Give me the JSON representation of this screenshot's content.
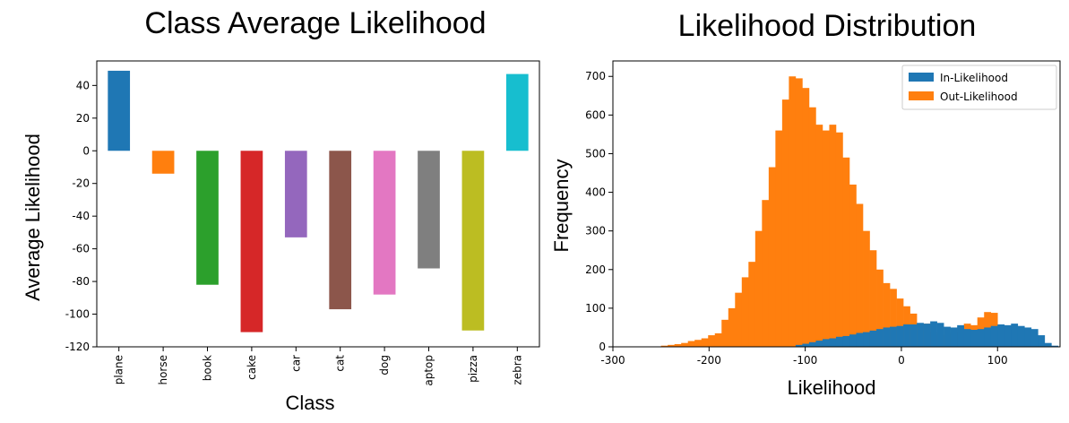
{
  "chart_data": [
    {
      "type": "bar",
      "title": "Class Average Likelihood",
      "xlabel": "Class",
      "ylabel": "Average Likelihood",
      "categories": [
        "plane",
        "horse",
        "book",
        "cake",
        "car",
        "cat",
        "dog",
        "aptop",
        "pizza",
        "zebra"
      ],
      "values": [
        49,
        -14,
        -82,
        -111,
        -53,
        -97,
        -88,
        -72,
        -110,
        47
      ],
      "colors": [
        "#1f77b4",
        "#ff7f0e",
        "#2ca02c",
        "#d62728",
        "#9467bd",
        "#8c564b",
        "#e377c2",
        "#7f7f7f",
        "#bcbd22",
        "#17becf"
      ],
      "ylim": [
        -120,
        55
      ],
      "yticks": [
        40,
        20,
        0,
        -20,
        -40,
        -60,
        -80,
        -100,
        -120
      ],
      "grid": false
    },
    {
      "type": "histogram",
      "title": "Likelihood Distribution",
      "xlabel": "Likelihood",
      "ylabel": "Frequency",
      "xlim": [
        -300,
        165
      ],
      "ylim": [
        0,
        740
      ],
      "xticks": [
        -300,
        -200,
        -100,
        0,
        100
      ],
      "yticks": [
        0,
        100,
        200,
        300,
        400,
        500,
        600,
        700
      ],
      "bins": {
        "start": -250,
        "width": 7,
        "series": [
          {
            "name": "In-Likelihood",
            "color": "#1f77b4",
            "counts": [
              0,
              0,
              0,
              0,
              0,
              0,
              0,
              0,
              0,
              0,
              0,
              0,
              0,
              0,
              0,
              0,
              0,
              0,
              0,
              0,
              5,
              8,
              12,
              16,
              20,
              22,
              26,
              28,
              32,
              36,
              38,
              42,
              46,
              50,
              52,
              54,
              58,
              58,
              62,
              60,
              66,
              62,
              52,
              50,
              56,
              46,
              44,
              46,
              50,
              54,
              58,
              56,
              60,
              54,
              50,
              46,
              30,
              10,
              3,
              0
            ]
          },
          {
            "name": "Out-Likelihood",
            "color": "#ff7f0e",
            "counts": [
              3,
              5,
              7,
              10,
              15,
              18,
              22,
              30,
              35,
              70,
              100,
              140,
              180,
              220,
              300,
              380,
              465,
              560,
              640,
              700,
              695,
              670,
              620,
              575,
              560,
              575,
              555,
              490,
              420,
              370,
              300,
              250,
              200,
              165,
              150,
              125,
              105,
              86,
              60,
              60,
              38,
              30,
              33,
              40,
              50,
              60,
              56,
              76,
              90,
              88,
              55,
              36,
              27,
              20,
              12,
              6,
              6,
              0,
              0,
              0
            ]
          }
        ]
      },
      "legend": "top-right",
      "grid": false
    }
  ]
}
